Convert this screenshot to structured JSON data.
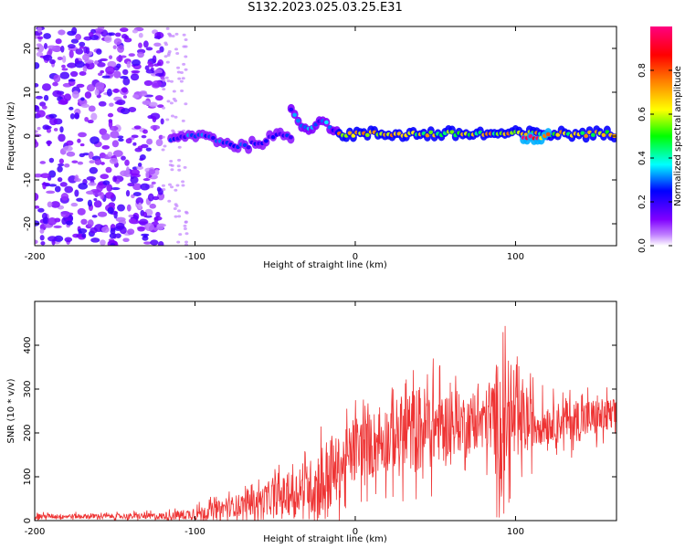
{
  "title": "S132.2023.025.03.25.E31",
  "colors": {
    "snr_line": "#ee3333",
    "axis": "#000000",
    "background": "#ffffff"
  },
  "chart_data": [
    {
      "type": "heatmap",
      "title": "S132.2023.025.03.25.E31",
      "xlabel": "Height of straight line (km)",
      "ylabel": "Frequency (Hz)",
      "xlim": [
        -200,
        163
      ],
      "ylim": [
        -25,
        25
      ],
      "xticks": [
        -200,
        -100,
        0,
        100
      ],
      "yticks": [
        -20,
        -10,
        0,
        10,
        20
      ],
      "colormap": "gist_rainbow (purple-blue-cyan-green-yellow-red-magenta)",
      "colorbar": {
        "label": "Normalized spectral amplitude",
        "range": [
          0.0,
          1.0
        ],
        "ticks": [
          0.0,
          0.2,
          0.4,
          0.6,
          0.8
        ]
      },
      "features": [
        {
          "region": "noise",
          "x_range": [
            -200,
            -120
          ],
          "y_range": [
            -25,
            25
          ],
          "amplitude": 0.1
        },
        {
          "region": "signal",
          "x_range": [
            -115,
            -40
          ],
          "y_center": 0,
          "amplitude": 0.3
        },
        {
          "region": "signal",
          "x_range": [
            -40,
            -10
          ],
          "y_center": 5,
          "amplitude": 0.35
        },
        {
          "region": "signal",
          "x_range": [
            -10,
            163
          ],
          "y_center": 0.5,
          "amplitude": 0.7
        },
        {
          "region": "peak",
          "x_range": [
            105,
            122
          ],
          "y_center": 0,
          "amplitude": 0.95
        }
      ]
    },
    {
      "type": "line",
      "xlabel": "Height of straight line (km)",
      "ylabel": "SNR (10 * v/v)",
      "xlim": [
        -200,
        163
      ],
      "ylim": [
        0,
        500
      ],
      "xticks": [
        -200,
        -100,
        0,
        100
      ],
      "yticks": [
        0,
        100,
        200,
        300,
        400
      ],
      "envelope": {
        "x": [
          -200,
          -150,
          -120,
          -100,
          -80,
          -60,
          -40,
          -30,
          -20,
          -10,
          0,
          20,
          40,
          60,
          80,
          90,
          95,
          100,
          120,
          140,
          163
        ],
        "mean": [
          10,
          10,
          10,
          15,
          30,
          45,
          60,
          75,
          90,
          120,
          160,
          190,
          210,
          220,
          230,
          230,
          225,
          220,
          225,
          230,
          240
        ],
        "max": [
          20,
          20,
          25,
          40,
          70,
          100,
          150,
          170,
          270,
          250,
          290,
          330,
          395,
          350,
          330,
          500,
          430,
          380,
          300,
          320,
          310
        ]
      }
    }
  ]
}
